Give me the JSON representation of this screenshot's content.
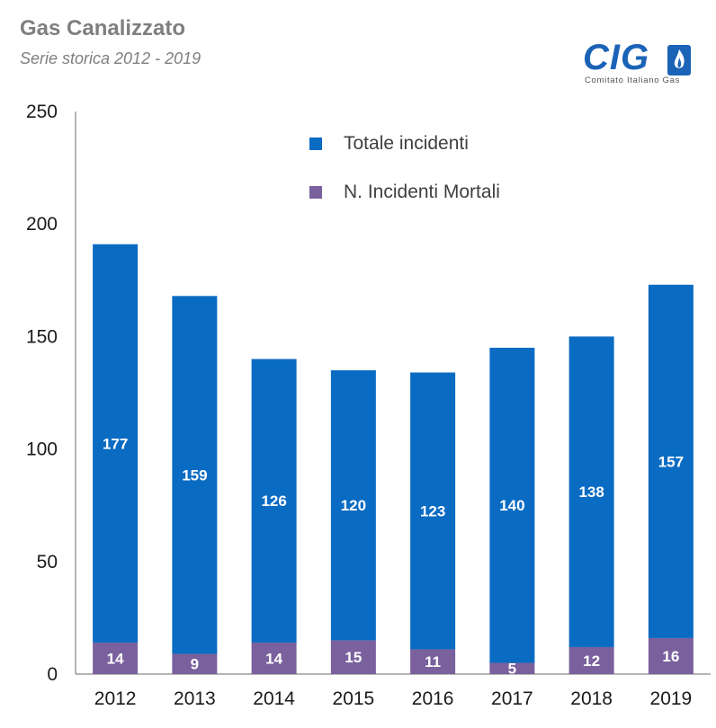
{
  "header": {
    "title": "Gas Canalizzato",
    "subtitle": "Serie storica 2012 - 2019"
  },
  "logo": {
    "letters": "CIG",
    "caption": "Comitato Italiano Gas"
  },
  "colors": {
    "totale": "#0a6bc3",
    "mortali": "#7a609d",
    "axis": "#6b6b6b"
  },
  "chart_data": {
    "type": "bar",
    "stacked": true,
    "categories": [
      "2012",
      "2013",
      "2014",
      "2015",
      "2016",
      "2017",
      "2018",
      "2019"
    ],
    "series": [
      {
        "name": "N. Incidenti Mortali",
        "values": [
          14,
          9,
          14,
          15,
          11,
          5,
          12,
          16
        ]
      },
      {
        "name": "Totale incidenti",
        "values": [
          177,
          159,
          126,
          120,
          123,
          140,
          138,
          157
        ]
      }
    ],
    "ylim": [
      0,
      250
    ],
    "yticks": [
      "0",
      "50",
      "100",
      "150",
      "200",
      "250"
    ],
    "grid": false,
    "legend": "top-center"
  }
}
